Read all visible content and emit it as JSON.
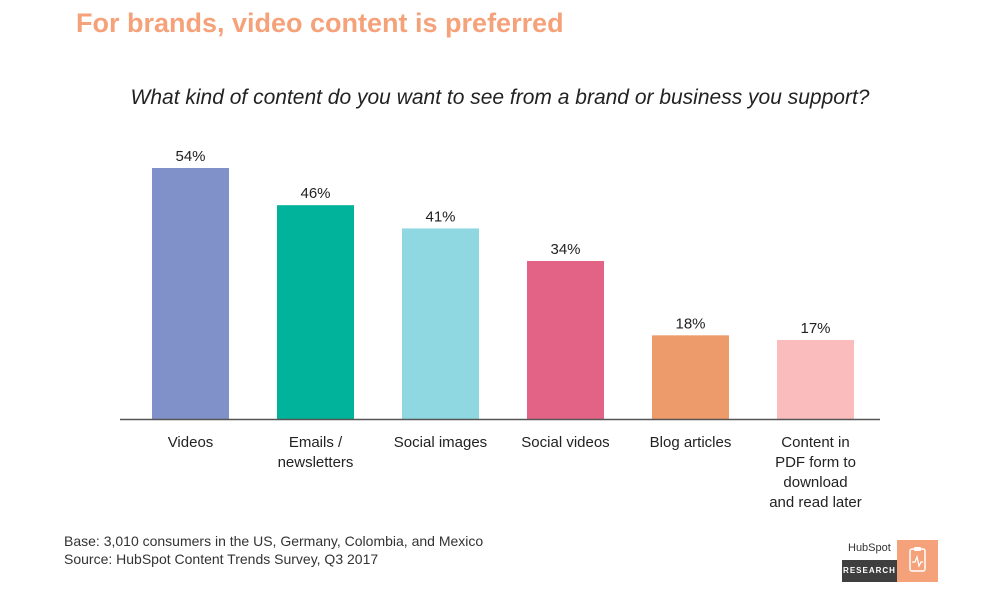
{
  "headline": "For brands, video content is preferred",
  "colors": {
    "headline": "#f5a27a",
    "axis": "#555555"
  },
  "chart_data": {
    "type": "bar",
    "title": "What kind of content do you want to see from a brand or business you support?",
    "categories": [
      "Videos",
      "Emails / newsletters",
      "Social images",
      "Social videos",
      "Blog articles",
      "Content in PDF form to download and read later"
    ],
    "category_lines": [
      [
        "Videos"
      ],
      [
        "Emails /",
        "newsletters"
      ],
      [
        "Social images"
      ],
      [
        "Social videos"
      ],
      [
        "Blog articles"
      ],
      [
        "Content in",
        "PDF form to",
        "download",
        "and read later"
      ]
    ],
    "values": [
      54,
      46,
      41,
      34,
      18,
      17
    ],
    "value_labels": [
      "54%",
      "46%",
      "41%",
      "34%",
      "18%",
      "17%"
    ],
    "bar_colors": [
      "#8090c8",
      "#00b39a",
      "#8fd8e1",
      "#e36387",
      "#ee9b6b",
      "#fbbcbd"
    ],
    "unit": "%",
    "ylim": [
      0,
      54
    ],
    "grid": false,
    "legend": "none"
  },
  "footnotes": {
    "base": "Base: 3,010 consumers in the US, Germany, Colombia, and Mexico",
    "source": "Source: HubSpot Content Trends Survey, Q3 2017"
  },
  "logo": {
    "brand": "HubSpot",
    "tag": "RESEARCH"
  }
}
